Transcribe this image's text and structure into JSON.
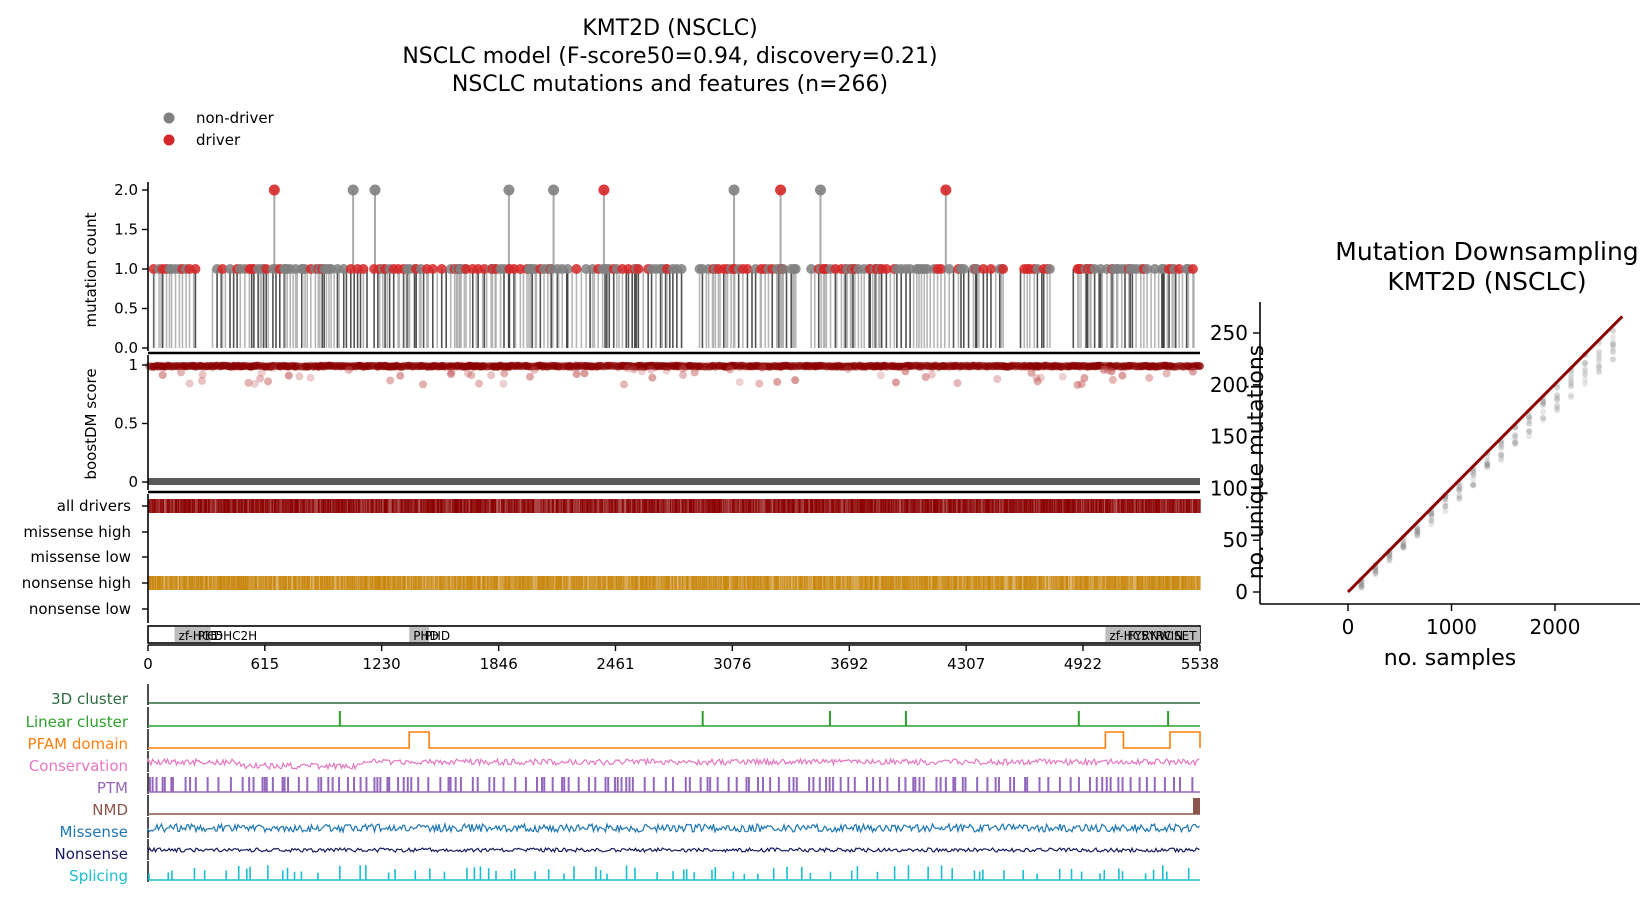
{
  "main_panel": {
    "title_lines": [
      "KMT2D (NSCLC)",
      "NSCLC model (F-score50=0.94, discovery=0.21)",
      "NSCLC mutations and features (n=266)"
    ],
    "legend": [
      {
        "label": "non-driver",
        "color": "#808080"
      },
      {
        "label": "driver",
        "color": "#d62728"
      }
    ],
    "protein_length": 5538,
    "colors": {
      "driver": "#d62728",
      "non_driver": "#808080",
      "dark_red": "#8b0000",
      "nonsense": "#c8860d",
      "domain": "#bdbdbd"
    }
  },
  "chart_data": [
    {
      "type": "scatter",
      "name": "mutation-lollipop",
      "ylabel": "mutation count",
      "yticks": [
        "0.0",
        "0.5",
        "1.0",
        "1.5",
        "2.0"
      ],
      "ylim": [
        0,
        2.1
      ],
      "xlim": [
        0,
        5538
      ],
      "count2_positions": [
        {
          "x": 665,
          "driver": true
        },
        {
          "x": 1080,
          "driver": false
        },
        {
          "x": 1195,
          "driver": false
        },
        {
          "x": 1900,
          "driver": false
        },
        {
          "x": 2135,
          "driver": false
        },
        {
          "x": 2400,
          "driver": true
        },
        {
          "x": 3085,
          "driver": false
        },
        {
          "x": 3330,
          "driver": true
        },
        {
          "x": 3540,
          "driver": false
        },
        {
          "x": 4200,
          "driver": true
        }
      ]
    },
    {
      "type": "scatter",
      "name": "boostdm-score",
      "ylabel": "boostDM score",
      "yticks": [
        "0",
        "0.5",
        "1"
      ],
      "ylim": [
        0,
        1
      ]
    },
    {
      "type": "heatmap",
      "name": "consequence-tracks",
      "rows": [
        "all drivers",
        "missense high",
        "missense low",
        "nonsense high",
        "nonsense low"
      ]
    },
    {
      "type": "bar",
      "name": "domain-track",
      "domains": [
        {
          "label": "zf-HC5",
          "start": 140,
          "end": 240
        },
        {
          "label": "PHD",
          "start": 240,
          "end": 290
        },
        {
          "label": "C5HC2H",
          "start": 290,
          "end": 330
        },
        {
          "label": "PHD",
          "start": 1375,
          "end": 1435
        },
        {
          "label": "PHD",
          "start": 1435,
          "end": 1480
        },
        {
          "label": "zf-HC5",
          "start": 5040,
          "end": 5135
        },
        {
          "label": "FYRN",
          "start": 5135,
          "end": 5210
        },
        {
          "label": "FYRC",
          "start": 5210,
          "end": 5300
        },
        {
          "label": "WIN",
          "start": 5300,
          "end": 5380
        },
        {
          "label": "SET",
          "start": 5380,
          "end": 5538
        }
      ],
      "xticks": [
        0,
        615,
        1230,
        1846,
        2461,
        3076,
        3692,
        4307,
        4922,
        5538
      ]
    },
    {
      "type": "line",
      "name": "feature-tracks",
      "tracks": [
        {
          "label": "3D cluster",
          "color": "#2e6b3f"
        },
        {
          "label": "Linear cluster",
          "color": "#2ca02c"
        },
        {
          "label": "PFAM domain",
          "color": "#ff7f0e"
        },
        {
          "label": "Conservation",
          "color": "#e377c2"
        },
        {
          "label": "PTM",
          "color": "#9467bd"
        },
        {
          "label": "NMD",
          "color": "#8c564b"
        },
        {
          "label": "Missense",
          "color": "#1f77b4"
        },
        {
          "label": "Nonsense",
          "color": "#1a1a5e"
        },
        {
          "label": "Splicing",
          "color": "#17becf"
        }
      ],
      "linear_clusters": [
        1010,
        2920,
        3590,
        3990,
        4900,
        5370
      ],
      "pfam_on": [
        [
          1375,
          1480
        ],
        [
          5040,
          5135
        ],
        [
          5380,
          5538
        ]
      ]
    },
    {
      "type": "line",
      "name": "mutation-downsampling",
      "title_lines": [
        "Mutation Downsampling",
        "KMT2D (NSCLC)"
      ],
      "xlabel": "no. samples",
      "ylabel": "no. unique mutations",
      "xticks": [
        0,
        1000,
        2000
      ],
      "yticks": [
        0,
        50,
        100,
        150,
        200,
        250
      ],
      "xlim": [
        0,
        2700
      ],
      "ylim": [
        0,
        280
      ],
      "fit_line": {
        "x": [
          0,
          2650
        ],
        "y": [
          0,
          266
        ]
      },
      "line_color": "#8b0000"
    }
  ]
}
